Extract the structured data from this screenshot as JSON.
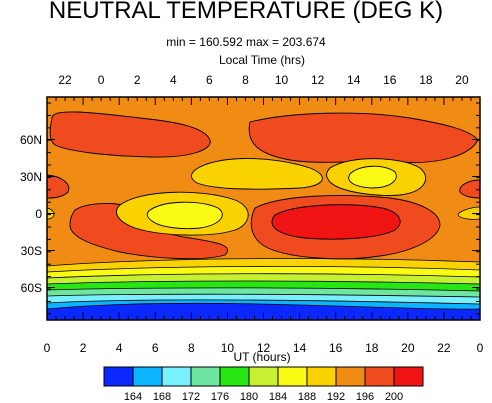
{
  "chart_data": {
    "type": "contour",
    "title": "NEUTRAL TEMPERATURE (DEG K)",
    "subtitle": "min = 160.592  max = 203.674",
    "xlabel_top": "Local Time (hrs)",
    "xlabel_bottom": "UT (hours)",
    "x_bottom_ticks": [
      "0",
      "2",
      "4",
      "6",
      "8",
      "10",
      "12",
      "14",
      "16",
      "18",
      "20",
      "22",
      "0"
    ],
    "x_top_ticks": [
      "22",
      "0",
      "2",
      "4",
      "6",
      "8",
      "10",
      "12",
      "14",
      "16",
      "18",
      "20"
    ],
    "y_ticks": [
      "60N",
      "30N",
      "0",
      "30S",
      "60S"
    ],
    "xlim": [
      0,
      24
    ],
    "colorbar_levels": [
      "164",
      "168",
      "172",
      "176",
      "180",
      "184",
      "188",
      "192",
      "196",
      "200"
    ],
    "colors": {
      "below_164": "#0a28ff",
      "164_168": "#0ab4ff",
      "168_172": "#78f0ff",
      "172_176": "#6ee6a0",
      "176_180": "#28e614",
      "180_184": "#c8f032",
      "184_188": "#fafa14",
      "188_192": "#fad200",
      "192_196": "#f08c14",
      "196_200": "#f04b1e",
      "above_200": "#f01414"
    }
  }
}
